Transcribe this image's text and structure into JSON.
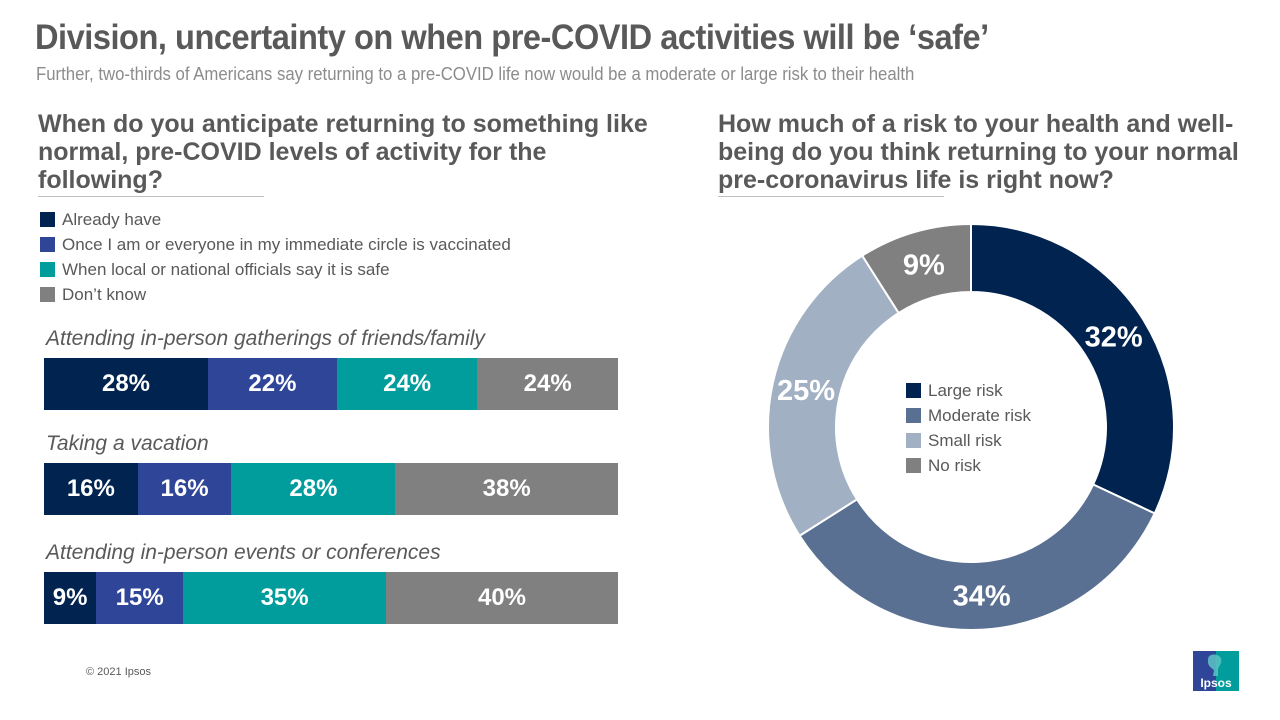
{
  "header": {
    "title": "Division, uncertainty on when pre-COVID activities will be ‘safe’",
    "subtitle": "Further, two-thirds of Americans say returning to a pre-COVID  life now would be a moderate or large risk to their health"
  },
  "footer": {
    "copyright": "© 2021 Ipsos",
    "logo_text": "Ipsos"
  },
  "colors": {
    "already_have": "#00234f",
    "vaccinated": "#2f4598",
    "officials": "#009d9c",
    "dont_know": "#808080",
    "large_risk": "#00234f",
    "moderate_risk": "#5a7092",
    "small_risk": "#a2b0c3",
    "no_risk": "#808080"
  },
  "chart_data": [
    {
      "type": "bar",
      "orientation": "horizontal-stacked-100",
      "title": "When do you anticipate returning to something like normal, pre-COVID levels of activity for the following?",
      "legend_position": "top-left",
      "series_names": [
        "Already have",
        "Once I am or everyone in my immediate circle is vaccinated",
        "When local or national officials say it is safe",
        "Don’t know"
      ],
      "categories": [
        "Attending in-person gatherings of friends/family",
        "Taking a vacation",
        "Attending in-person events or conferences"
      ],
      "series": [
        {
          "name": "Already have",
          "values": [
            28,
            16,
            9
          ]
        },
        {
          "name": "Once I am or everyone in my immediate circle is vaccinated",
          "values": [
            22,
            16,
            15
          ]
        },
        {
          "name": "When local or national officials say it is safe",
          "values": [
            24,
            28,
            35
          ]
        },
        {
          "name": "Don’t know",
          "values": [
            24,
            38,
            40
          ]
        }
      ],
      "value_suffix": "%"
    },
    {
      "type": "pie",
      "variant": "donut",
      "title": "How much of a risk to your health and well-being do you think returning to your normal pre-coronavirus life is right now?",
      "legend_position": "center",
      "labels": [
        "Large risk",
        "Moderate risk",
        "Small risk",
        "No risk"
      ],
      "values": [
        32,
        34,
        25,
        9
      ],
      "value_suffix": "%"
    }
  ]
}
